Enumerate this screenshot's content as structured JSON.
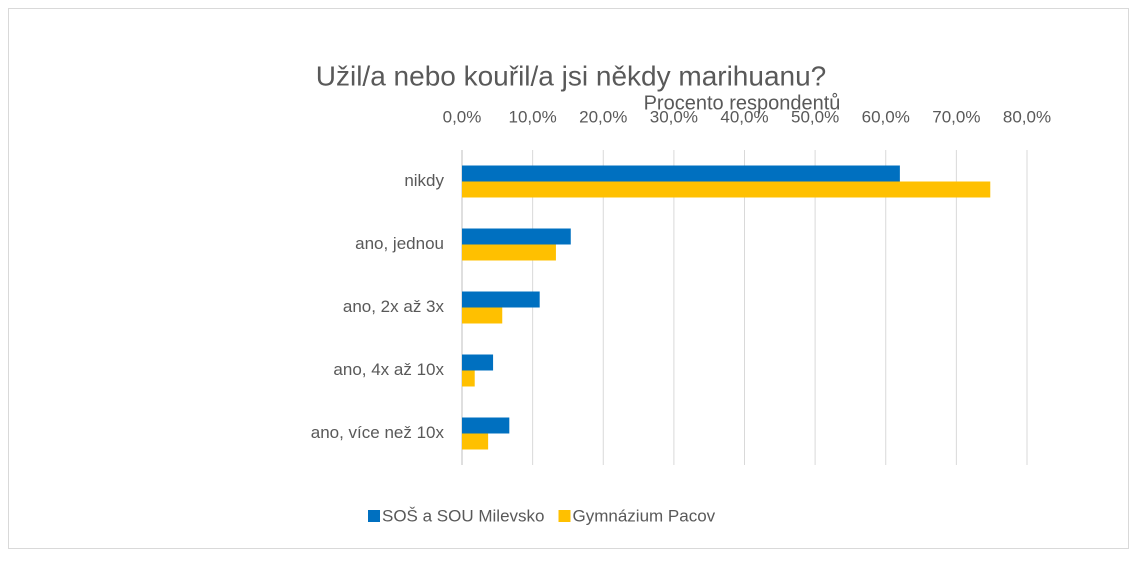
{
  "chart_data": {
    "type": "barh",
    "title": "Užil/a nebo kouřil/a jsi někdy marihuanu?",
    "x_label": "Procento respondentů",
    "categories": [
      "nikdy",
      "ano, jednou",
      "ano, 2x až 3x",
      "ano, 4x až 10x",
      "ano, více než 10x"
    ],
    "series": [
      {
        "name": "SOŠ a SOU Milevsko",
        "color": "#0070c0",
        "values": [
          62.0,
          15.4,
          11.0,
          4.4,
          6.7
        ]
      },
      {
        "name": "Gymnázium Pacov",
        "color": "#ffc000",
        "values": [
          74.8,
          13.3,
          5.7,
          1.8,
          3.7
        ]
      }
    ],
    "xlim": [
      0,
      80
    ],
    "xticks": [
      {
        "value": 0,
        "label": "0,0%"
      },
      {
        "value": 10,
        "label": "10,0%"
      },
      {
        "value": 20,
        "label": "20,0%"
      },
      {
        "value": 30,
        "label": "30,0%"
      },
      {
        "value": 40,
        "label": "40,0%"
      },
      {
        "value": 50,
        "label": "50,0%"
      },
      {
        "value": 60,
        "label": "60,0%"
      },
      {
        "value": 70,
        "label": "70,0%"
      },
      {
        "value": 80,
        "label": "80,0%"
      }
    ],
    "grid": true,
    "legend": "bottom"
  }
}
